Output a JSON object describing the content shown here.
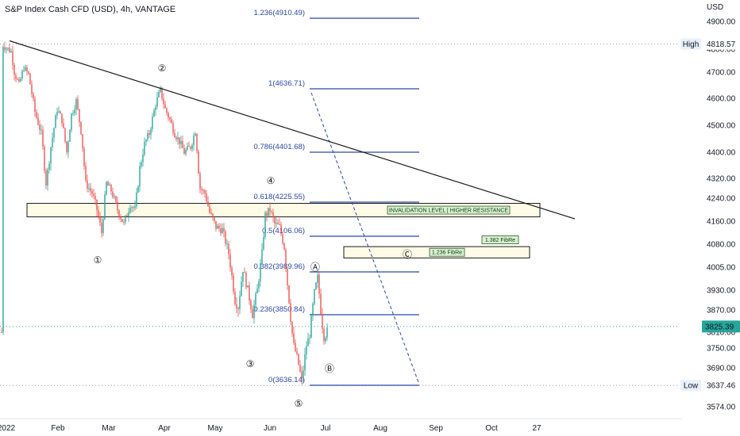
{
  "header": {
    "title": "S&P Index Cash CFD (USD), 4h, VANTAGE"
  },
  "colors": {
    "up": "#26a69a",
    "down": "#ef5350",
    "fib": "#2a47a8",
    "zone_fill": "#fffbe6",
    "current_price_bg": "#26a69a",
    "extreme_label_bg": "#e8f0fb"
  },
  "chart_data": {
    "type": "candlestick",
    "title": "S&P Index Cash CFD (USD), 4h, VANTAGE",
    "currency_label": "USD",
    "y_ticks": [
      4900.0,
      4800.0,
      4700.0,
      4600.0,
      4500.0,
      4400.0,
      4320.0,
      4240.0,
      4160.0,
      4080.0,
      4005.0,
      3930.0,
      3870.0,
      3810.0,
      3750.0,
      3690.0,
      3574.0
    ],
    "x_tick_labels": [
      "2022",
      "Feb",
      "Mar",
      "Apr",
      "May",
      "Jun",
      "Jul",
      "Aug",
      "Sep",
      "Oct",
      "27"
    ],
    "fib_levels": [
      {
        "label": "1.236(4910.49)",
        "value": 4910.49
      },
      {
        "label": "1(4636.71)",
        "value": 4636.71
      },
      {
        "label": "0.786(4401.68)",
        "value": 4401.68
      },
      {
        "label": "0.618(4225.55)",
        "value": 4225.55
      },
      {
        "label": "0.5(4106.06)",
        "value": 4106.06
      },
      {
        "label": "0.382(3989.96)",
        "value": 3989.96
      },
      {
        "label": "0.236(3850.84)",
        "value": 3850.84
      },
      {
        "label": "0(3636.14)",
        "value": 3636.14
      }
    ],
    "high": {
      "label": "High",
      "value": "4818.57"
    },
    "low": {
      "label": "Low",
      "value": "3637.46"
    },
    "current_price": {
      "value": "3825.39"
    },
    "zones": [
      {
        "label": "INVALIDATION LEVEL | HIGHER RESISTANCE",
        "from": 4175,
        "to": 4222
      },
      {
        "label": "1.236 FibRe",
        "from": 4035,
        "to": 4072
      },
      {
        "label": "1.382 FibRe",
        "from": 4090,
        "to": 4100
      }
    ],
    "wave_labels": [
      "①",
      "②",
      "③",
      "④",
      "⑤",
      "Ⓐ",
      "Ⓑ",
      "Ⓒ"
    ],
    "trendline": {
      "start": 4830,
      "end": 4168
    }
  }
}
